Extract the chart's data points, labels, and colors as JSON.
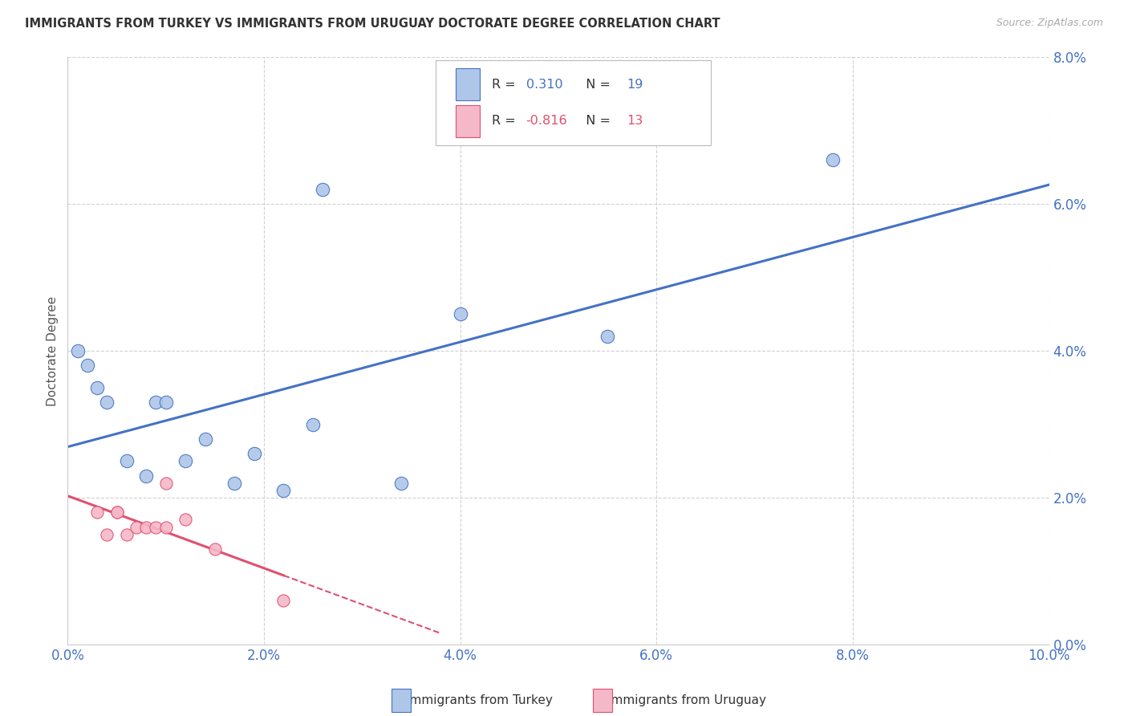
{
  "title": "IMMIGRANTS FROM TURKEY VS IMMIGRANTS FROM URUGUAY DOCTORATE DEGREE CORRELATION CHART",
  "source": "Source: ZipAtlas.com",
  "ylabel": "Doctorate Degree",
  "xlim": [
    0.0,
    0.1
  ],
  "ylim": [
    0.0,
    0.08
  ],
  "yticks": [
    0.0,
    0.02,
    0.04,
    0.06,
    0.08
  ],
  "xticks": [
    0.0,
    0.02,
    0.04,
    0.06,
    0.08,
    0.1
  ],
  "turkey_face_color": "#aec6e8",
  "turkey_edge_color": "#4472c4",
  "uruguay_face_color": "#f4b8c8",
  "uruguay_edge_color": "#e05070",
  "turkey_R": "0.310",
  "turkey_N": "19",
  "uruguay_R": "-0.816",
  "uruguay_N": "13",
  "turkey_x": [
    0.001,
    0.002,
    0.003,
    0.004,
    0.006,
    0.008,
    0.009,
    0.01,
    0.012,
    0.014,
    0.017,
    0.019,
    0.022,
    0.025,
    0.026,
    0.034,
    0.04,
    0.055,
    0.078
  ],
  "turkey_y": [
    0.04,
    0.038,
    0.035,
    0.033,
    0.025,
    0.023,
    0.033,
    0.033,
    0.025,
    0.028,
    0.022,
    0.026,
    0.021,
    0.03,
    0.062,
    0.022,
    0.045,
    0.042,
    0.066
  ],
  "uruguay_x": [
    0.003,
    0.004,
    0.005,
    0.005,
    0.006,
    0.007,
    0.008,
    0.009,
    0.01,
    0.01,
    0.012,
    0.015,
    0.022
  ],
  "uruguay_y": [
    0.018,
    0.015,
    0.018,
    0.018,
    0.015,
    0.016,
    0.016,
    0.016,
    0.016,
    0.022,
    0.017,
    0.013,
    0.006
  ],
  "legend_label_turkey": "Immigrants from Turkey",
  "legend_label_uruguay": "Immigrants from Uruguay",
  "background_color": "#ffffff",
  "grid_color": "#cccccc",
  "tick_color": "#4472c4",
  "title_color": "#333333",
  "source_color": "#aaaaaa",
  "label_color": "#555555"
}
